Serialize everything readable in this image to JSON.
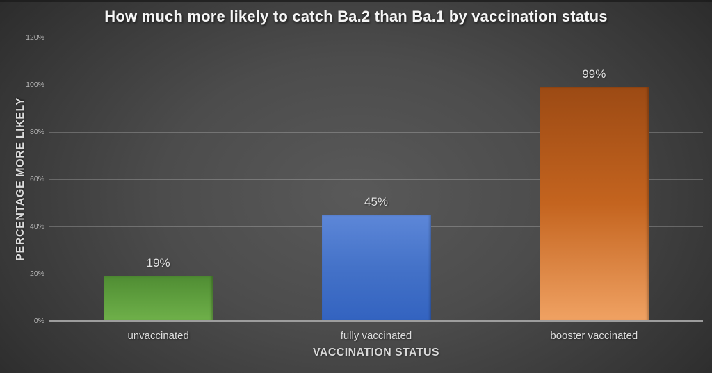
{
  "chart_data": {
    "type": "bar",
    "title": "How much more likely to catch Ba.2 than Ba.1 by vaccination status",
    "xlabel": "VACCINATION STATUS",
    "ylabel": "PERCENTAGE MORE LIKELY",
    "categories": [
      "unvaccinated",
      "fully vaccinated",
      "booster vaccinated"
    ],
    "values": [
      19,
      45,
      99
    ],
    "data_labels": [
      "19%",
      "45%",
      "99%"
    ],
    "ylim": [
      0,
      120
    ],
    "yticks": [
      0,
      20,
      40,
      60,
      80,
      100,
      120
    ],
    "ytick_labels": [
      "0%",
      "20%",
      "40%",
      "60%",
      "80%",
      "100%",
      "120%"
    ],
    "grid": true,
    "legend": false,
    "series_colors": [
      {
        "name": "green",
        "base": "#57993a",
        "gradient": [
          "#4f8c33",
          "#5f9f3e",
          "#6fb04a"
        ]
      },
      {
        "name": "blue",
        "base": "#4472c4",
        "gradient": [
          "#5d87d8",
          "#4472c8",
          "#3363c0"
        ]
      },
      {
        "name": "orange",
        "base": "#c4641f",
        "gradient": [
          "#9c4a14",
          "#c4641f",
          "#f0a263"
        ]
      }
    ],
    "colors": {
      "background_center": "#595959",
      "background_edge": "#242424",
      "gridline": "#6e6e6e",
      "axis_line": "#9d9d9d",
      "title_text": "#f5f5f5",
      "label_text": "#e3e3e3",
      "tick_text": "#b8b8b8"
    }
  }
}
